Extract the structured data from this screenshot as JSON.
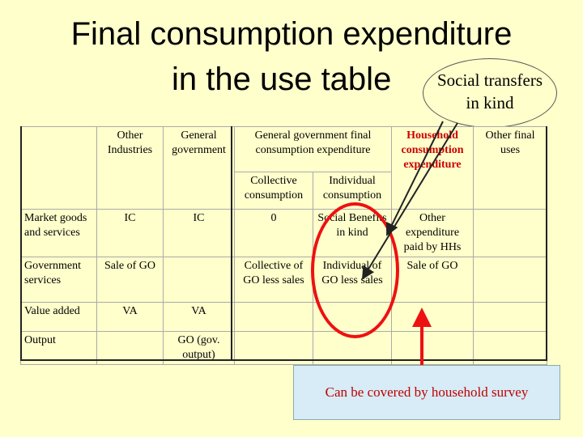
{
  "title": {
    "line1": "Final consumption expenditure",
    "line2": "in the use table"
  },
  "callout": {
    "line1": "Social transfers",
    "line2": "in kind"
  },
  "table": {
    "header1": {
      "other_industries": "Other Industries",
      "general_government": "General government",
      "gg_final_consumption": "General government final consumption expenditure",
      "household_consumption": "Household consumption expenditure",
      "other_final_uses": "Other final uses"
    },
    "header2": {
      "collective_consumption": "Collective consumption",
      "individual_consumption": "Individual consumption"
    },
    "rows": [
      {
        "label": "Market goods and services",
        "other_industries": "IC",
        "general_government": "IC",
        "collective": "0",
        "individual": "Social Benefits in kind",
        "household": "Other expenditure paid by HHs",
        "other_final": ""
      },
      {
        "label": "Government services",
        "other_industries": "Sale of GO",
        "general_government": "",
        "collective": "Collective of GO less sales",
        "individual": "Individual of GO less sales",
        "household": "Sale of GO",
        "other_final": ""
      },
      {
        "label": "Value added",
        "other_industries": "VA",
        "general_government": "VA",
        "collective": "",
        "individual": "",
        "household": "",
        "other_final": ""
      },
      {
        "label": "Output",
        "other_industries": "",
        "general_government": "GO (gov. output)",
        "collective": "",
        "individual": "",
        "household": "",
        "other_final": ""
      }
    ]
  },
  "survey_box": {
    "text": "Can be covered by household survey"
  },
  "colors": {
    "background": "#ffffcc",
    "highlight_red": "#ee1111",
    "survey_box_bg": "#d7ecf6",
    "survey_text": "#c00000"
  }
}
